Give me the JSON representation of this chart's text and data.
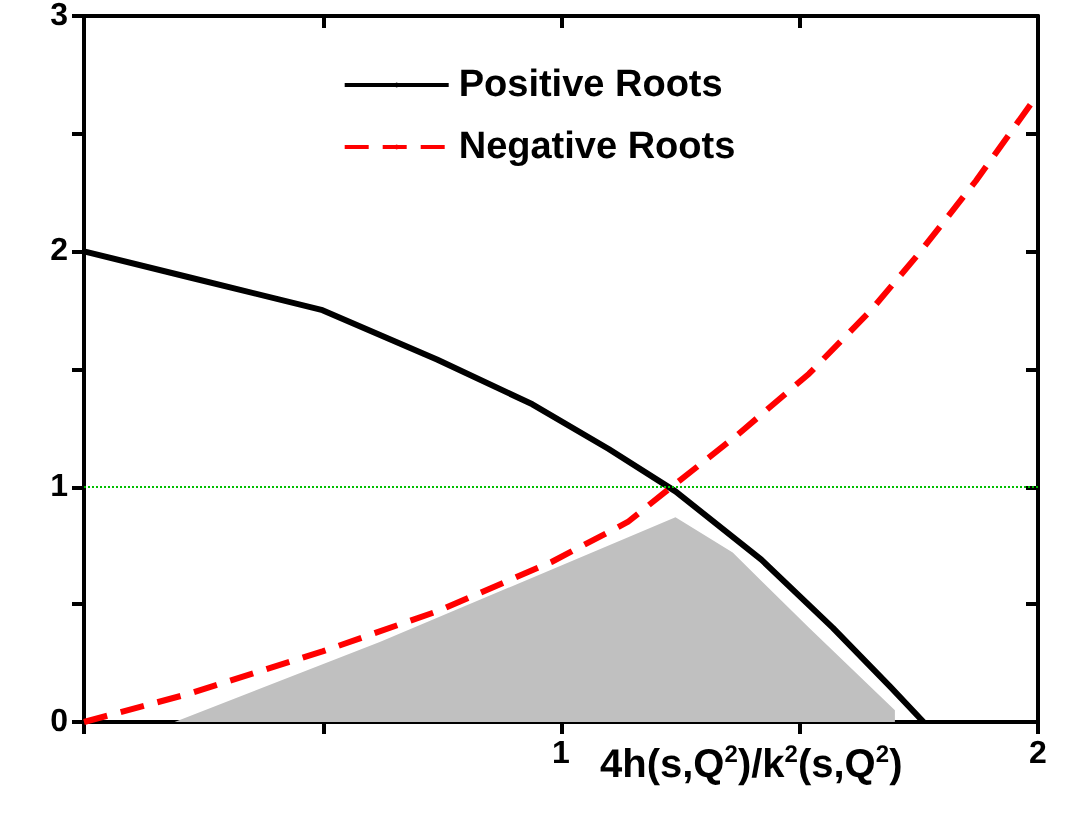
{
  "chart_data": {
    "type": "line",
    "xlabel": "4h(s,Q$^{2}$)/k$^{2}$(s,Q$^{2}$)",
    "xlim": [
      0,
      2
    ],
    "xticks": [
      {
        "value": 0,
        "label": null
      },
      {
        "value": 0.5,
        "label": null
      },
      1,
      {
        "value": 1.5,
        "label": null
      },
      2
    ],
    "ylim": [
      0,
      3
    ],
    "yticks": [
      0,
      {
        "value": 0.5,
        "label": null
      },
      1,
      {
        "value": 1.5,
        "label": null
      },
      2,
      {
        "value": 2.5,
        "label": null
      },
      3
    ],
    "legend": "top",
    "grid": false,
    "marker": "none",
    "series": [
      {
        "type": "area",
        "color": "#c0c0c0",
        "x": [
          0.19,
          0.62,
          1.24,
          1.36,
          1.52,
          1.7,
          1.7
        ],
        "values": [
          0,
          0.34,
          0.87,
          0.72,
          0.4,
          0.05,
          0
        ]
      },
      {
        "name": "Positive Roots",
        "color": "#000000",
        "line_style": "solid",
        "x": [
          0,
          0.22,
          0.5,
          0.74,
          0.94,
          1.1,
          1.24,
          1.42,
          1.57,
          1.69,
          1.76
        ],
        "values": [
          2,
          1.89,
          1.75,
          1.54,
          1.35,
          1.16,
          0.98,
          0.69,
          0.4,
          0.15,
          0
        ]
      },
      {
        "name": "Negative Roots",
        "color": "#ff0000",
        "line_style": "dashed",
        "x": [
          0,
          0.22,
          0.5,
          0.74,
          0.98,
          1.14,
          1.22,
          1.37,
          1.52,
          1.65,
          1.75,
          1.87,
          1.99
        ],
        "values": [
          0,
          0.12,
          0.3,
          0.47,
          0.68,
          0.85,
          0.98,
          1.22,
          1.48,
          1.75,
          1.99,
          2.3,
          2.64
        ]
      }
    ],
    "ref_lines": [
      {
        "axis": "y",
        "value": 1,
        "color": "#00c000",
        "line_style": "dotted"
      }
    ]
  }
}
